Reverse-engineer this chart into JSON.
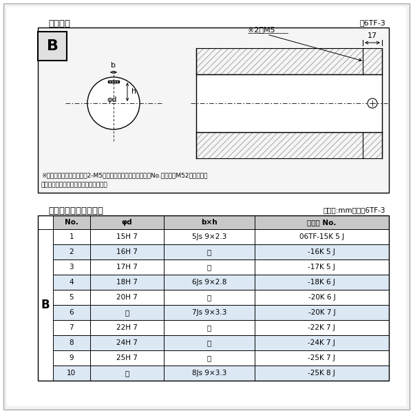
{
  "title_top": "軸穴形状",
  "fig_label_top": "図6TF-3",
  "title_bottom": "軸穴形状コード一覧表",
  "fig_label_bottom": "（単位:mm）　表6TF-3",
  "note1": "※セットボルト用タップ（2-M5）が必要な場合は右記コードNo.の末尾にM52を付ける。",
  "note2": "（セットボルトは付属されています。）",
  "table_headers": [
    "No.",
    "φd",
    "b×h",
    "コード No."
  ],
  "table_rows": [
    [
      "1",
      "15H 7",
      "5Js 9×2.3",
      "06TF-15K 5 J"
    ],
    [
      "2",
      "16H 7",
      "〃",
      "-16K 5 J"
    ],
    [
      "3",
      "17H 7",
      "〃",
      "-17K 5 J"
    ],
    [
      "4",
      "18H 7",
      "6Js 9×2.8",
      "-18K 6 J"
    ],
    [
      "5",
      "20H 7",
      "〃",
      "-20K 6 J"
    ],
    [
      "6",
      "〃",
      "7Js 9×3.3",
      "-20K 7 J"
    ],
    [
      "7",
      "22H 7",
      "〃",
      "-22K 7 J"
    ],
    [
      "8",
      "24H 7",
      "〃",
      "-24K 7 J"
    ],
    [
      "9",
      "25H 7",
      "〃",
      "-25K 7 J"
    ],
    [
      "10",
      "〃",
      "8Js 9×3.3",
      "-25K 8 J"
    ]
  ],
  "B_label": "B",
  "diagram_note_M5": "※2－M5",
  "diagram_note_17": "17",
  "diagram_label_b": "b",
  "diagram_label_h": "h",
  "diagram_label_phid": "φd",
  "bg_color": "#ffffff",
  "page_bg": "#f0f0f0",
  "diagram_bg": "#f5f5f5",
  "table_row_alt": "#dce8f0",
  "table_header_bg": "#c8c8c8",
  "black": "#000000",
  "gray": "#888888"
}
